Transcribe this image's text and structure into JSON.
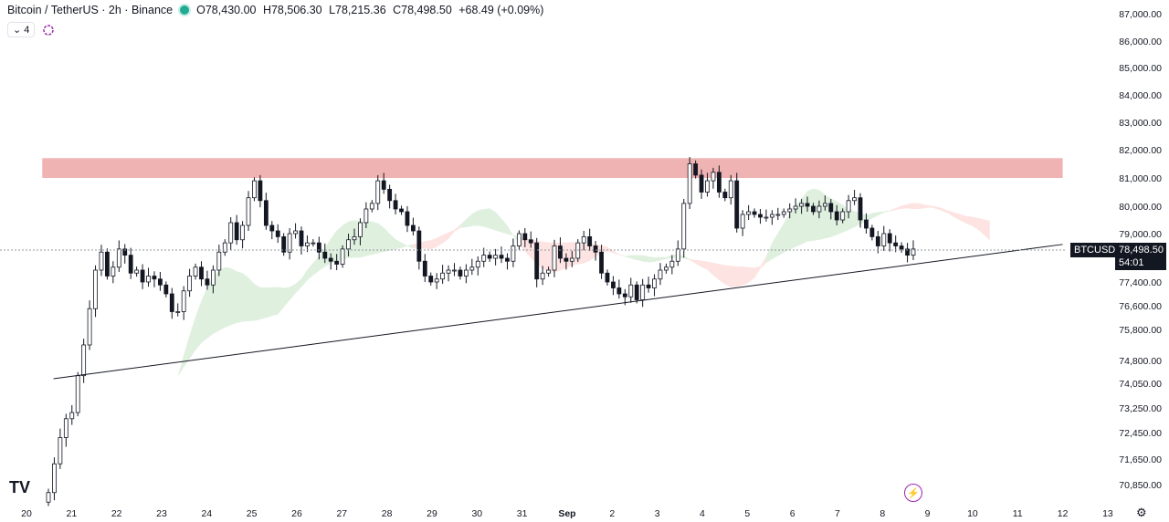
{
  "legend": {
    "symbol": "Bitcoin / TetherUS · 2h · Binance",
    "open_label": "O",
    "open": "78,430.00",
    "high_label": "H",
    "high": "78,506.30",
    "low_label": "L",
    "low": "78,215.36",
    "close_label": "C",
    "close": "78,498.50",
    "change": "+68.49 (+0.09%)"
  },
  "indicators": {
    "count": "4",
    "chevron": "chevron-down-icon",
    "eye": "indicator-icon"
  },
  "price_tag": {
    "ticker": "BTCUSDT",
    "price": "78,498.50",
    "countdown": "54:01"
  },
  "logo": "TV",
  "colors": {
    "up": "#131722",
    "down": "#131722",
    "resistance": "#f0b3b3",
    "cloud_bull": "#dff0df",
    "cloud_bear": "#fde3e1",
    "trendline": "#131722"
  },
  "chart_data": {
    "type": "candlestick",
    "y_axis": {
      "ticks": [
        "87,000.00",
        "86,000.00",
        "85,000.00",
        "84,000.00",
        "83,000.00",
        "82,000.00",
        "81,000.00",
        "80,000.00",
        "79,000.00",
        "78,200.00",
        "77,400.00",
        "76,600.00",
        "75,800.00",
        "74,800.00",
        "74,050.00",
        "73,250.00",
        "72,450.00",
        "71,650.00",
        "70,850.00"
      ],
      "range": [
        70300,
        87400
      ]
    },
    "x_axis": {
      "ticks": [
        "20",
        "21",
        "22",
        "23",
        "24",
        "25",
        "26",
        "27",
        "28",
        "29",
        "30",
        "31",
        "Sep",
        "2",
        "3",
        "4",
        "5",
        "6",
        "7",
        "8",
        "9",
        "10",
        "11",
        "12",
        "13"
      ]
    },
    "resistance_zone": {
      "low": 81000,
      "high": 81700,
      "from_day": 20.35,
      "to_day": 12.0
    },
    "trendline": {
      "from": {
        "day": 20.6,
        "price": 74200
      },
      "to": {
        "day": 12.0,
        "price": 78650
      }
    },
    "close_series": [
      70600,
      71500,
      72300,
      72900,
      73100,
      74300,
      75300,
      76500,
      77800,
      78400,
      77600,
      77900,
      78500,
      78300,
      77700,
      77800,
      77400,
      77600,
      77500,
      77300,
      77000,
      76400,
      76400,
      77100,
      77600,
      77900,
      77500,
      77300,
      77800,
      78400,
      78700,
      79400,
      78800,
      79300,
      80300,
      80900,
      80200,
      79300,
      79100,
      78900,
      78400,
      79000,
      79100,
      78600,
      78700,
      78700,
      78400,
      78200,
      78100,
      78000,
      78500,
      78800,
      78900,
      79400,
      79900,
      80100,
      80900,
      80600,
      80200,
      79900,
      79800,
      79300,
      79100,
      78100,
      77600,
      77400,
      77500,
      77700,
      77800,
      77800,
      77600,
      77800,
      77900,
      78100,
      78300,
      78200,
      78300,
      78200,
      78100,
      78600,
      79000,
      78800,
      78700,
      77500,
      77700,
      77800,
      78600,
      78200,
      78100,
      78200,
      78700,
      78900,
      78600,
      78400,
      77700,
      77400,
      77200,
      77000,
      76900,
      77300,
      76800,
      77300,
      77200,
      77500,
      77800,
      77900,
      78100,
      78500,
      80100,
      81500,
      81100,
      80500,
      80900,
      81200,
      80500,
      80300,
      80900,
      79200,
      79700,
      79800,
      79700,
      79600,
      79600,
      79700,
      79700,
      79800,
      79900,
      80000,
      80100,
      80000,
      79800,
      80000,
      80100,
      79800,
      79500,
      79800,
      80200,
      80300,
      79500,
      79200,
      78900,
      78600,
      79000,
      78700,
      78600,
      78500,
      78300,
      78500
    ],
    "cloud_bullish_visible": true,
    "cloud_bearish_visible": true
  }
}
